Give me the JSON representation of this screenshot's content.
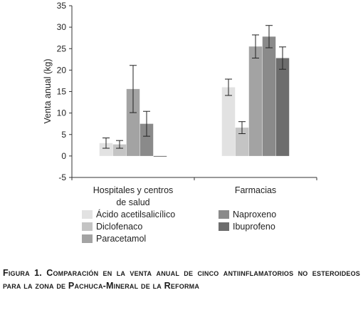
{
  "chart_data": {
    "type": "bar",
    "ylabel": "Venta anual (kg)",
    "xlabel": "",
    "ylim": [
      -5,
      35
    ],
    "yticks": [
      -5,
      0,
      5,
      10,
      15,
      20,
      25,
      30,
      35
    ],
    "categories": [
      [
        "Hospitales y centros",
        "de salud"
      ],
      [
        "Farmacias"
      ]
    ],
    "series": [
      {
        "name": "Ácido acetilsalicílico",
        "color": "#e2e2e2",
        "values": [
          3.0,
          16.0
        ],
        "errors": [
          1.2,
          1.9
        ]
      },
      {
        "name": "Diclofenaco",
        "color": "#c4c4c4",
        "values": [
          2.7,
          6.6
        ],
        "errors": [
          0.9,
          1.4
        ]
      },
      {
        "name": "Paracetamol",
        "color": "#a3a3a3",
        "values": [
          15.6,
          25.5
        ],
        "errors": [
          5.5,
          2.7
        ]
      },
      {
        "name": "Naproxeno",
        "color": "#8a8a8a",
        "values": [
          7.5,
          27.8
        ],
        "errors": [
          2.9,
          2.6
        ]
      },
      {
        "name": "Ibuprofeno",
        "color": "#6d6d6d",
        "values": [
          0.0,
          22.8
        ],
        "errors": [
          0,
          2.6
        ]
      }
    ],
    "legend_position": "bottom"
  },
  "caption": "Figura 1. Comparación en la venta anual de cinco antiinflamatorios no esteroideos para la zona de Pachuca-Mineral de la Reforma"
}
